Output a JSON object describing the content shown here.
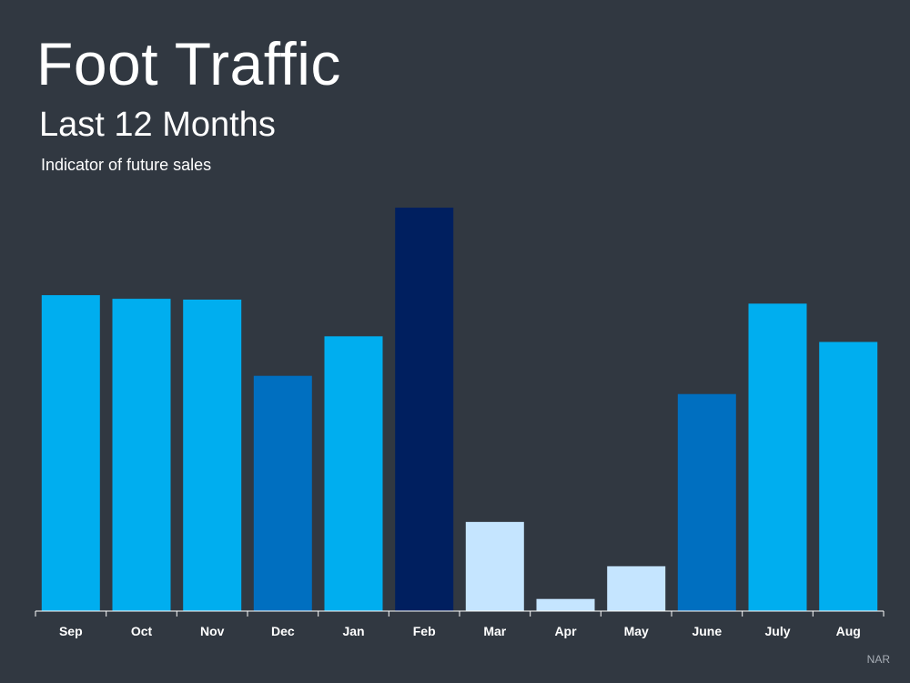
{
  "header": {
    "title": "Foot Traffic",
    "subtitle": "Last 12 Months",
    "note": "Indicator of future sales"
  },
  "footer": {
    "source": "NAR"
  },
  "colors": {
    "background": "#313841",
    "axis": "#ffffff",
    "bright_blue": "#00aeef",
    "medium_blue": "#006fc0",
    "navy": "#001f5f",
    "pale_blue": "#c5e5ff"
  },
  "chart_data": {
    "type": "bar",
    "title": "Foot Traffic",
    "subtitle": "Last 12 Months",
    "xlabel": "",
    "ylabel": "",
    "grid": false,
    "legend": "none",
    "y_axis_shown": false,
    "ylim": [
      0,
      100
    ],
    "categories": [
      "Sep",
      "Oct",
      "Nov",
      "Dec",
      "Jan",
      "Feb",
      "Mar",
      "Apr",
      "May",
      "June",
      "July",
      "Aug"
    ],
    "values": [
      78.3,
      77.4,
      77.2,
      58.3,
      68.1,
      100,
      22.1,
      3,
      11.1,
      53.8,
      76.2,
      66.7
    ],
    "bar_colors": [
      "#00aeef",
      "#00aeef",
      "#00aeef",
      "#006fc0",
      "#00aeef",
      "#001f5f",
      "#c5e5ff",
      "#c5e5ff",
      "#c5e5ff",
      "#006fc0",
      "#00aeef",
      "#00aeef"
    ]
  }
}
